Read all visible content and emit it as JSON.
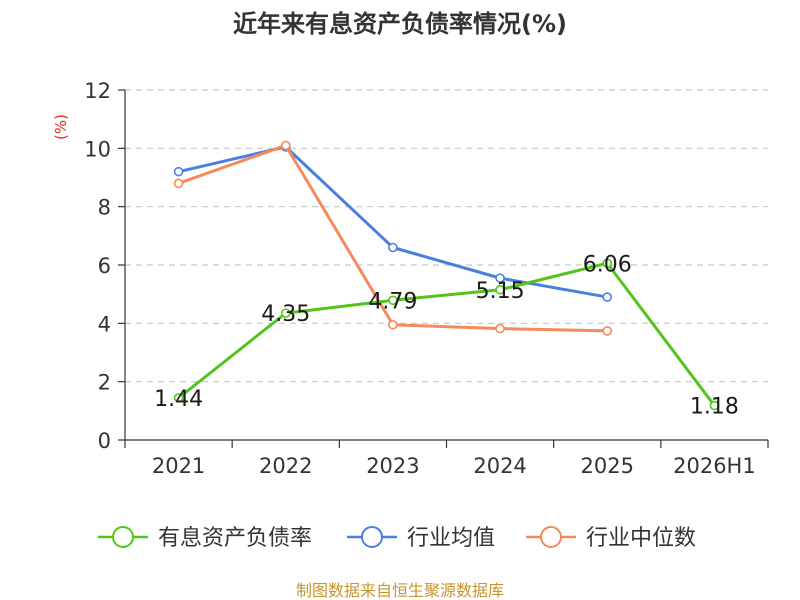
{
  "chart_data": {
    "type": "line",
    "title": "近年来有息资产负债率情况(%)",
    "ylabel": "(%)",
    "xlabel": "",
    "categories": [
      "2021",
      "2022",
      "2023",
      "2024",
      "2025",
      "2026H1"
    ],
    "ylim": [
      0,
      12
    ],
    "yticks": [
      0,
      2,
      4,
      6,
      8,
      10,
      12
    ],
    "grid": true,
    "legend_position": "bottom",
    "series": [
      {
        "name": "有息资产负债率",
        "color": "#52c41a",
        "values": [
          1.44,
          4.35,
          4.79,
          5.15,
          6.06,
          1.18
        ],
        "labels": [
          "1.44",
          "4.35",
          "4.79",
          "5.15",
          "6.06",
          "1.18"
        ]
      },
      {
        "name": "行业均值",
        "color": "#4a7fe0",
        "values": [
          9.2,
          10.05,
          6.6,
          5.55,
          4.9,
          null
        ]
      },
      {
        "name": "行业中位数",
        "color": "#f58b5a",
        "values": [
          8.8,
          10.1,
          3.95,
          3.82,
          3.74,
          null
        ]
      }
    ]
  },
  "source": "制图数据来自恒生聚源数据库"
}
